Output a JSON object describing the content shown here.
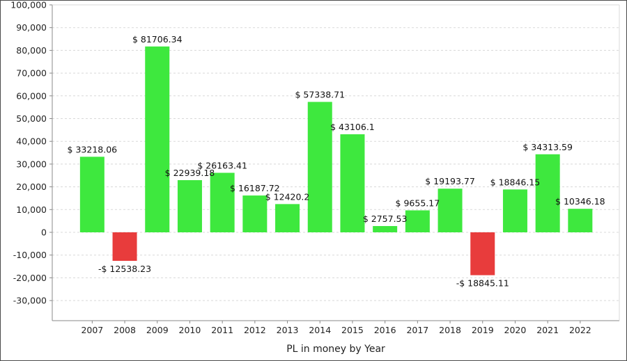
{
  "chart_data": {
    "type": "bar",
    "title": "",
    "xlabel": "PL in money by Year",
    "ylabel": "",
    "ylim": [
      -40000,
      100000
    ],
    "yticks": [
      100000,
      90000,
      80000,
      70000,
      60000,
      50000,
      40000,
      30000,
      20000,
      10000,
      0,
      -10000,
      -20000,
      -30000
    ],
    "ytick_labels": [
      "100,000",
      "90,000",
      "80,000",
      "70,000",
      "60,000",
      "50,000",
      "40,000",
      "30,000",
      "20,000",
      "10,000",
      "0",
      "-10,000",
      "-20,000",
      "-30,000"
    ],
    "grid": true,
    "categories": [
      "2007",
      "2008",
      "2009",
      "2010",
      "2011",
      "2012",
      "2013",
      "2014",
      "2015",
      "2016",
      "2017",
      "2018",
      "2019",
      "2020",
      "2021",
      "2022"
    ],
    "values": [
      33218.06,
      -12538.23,
      81706.34,
      22939.18,
      26163.41,
      16187.72,
      12420.2,
      57338.71,
      43106.1,
      2757.53,
      9655.17,
      19193.77,
      -18845.11,
      18846.15,
      34313.59,
      10346.18
    ],
    "data_labels": [
      "$ 33218.06",
      "-$ 12538.23",
      "$ 81706.34",
      "$ 22939.18",
      "$ 26163.41",
      "$ 16187.72",
      "$ 12420.2",
      "$ 57338.71",
      "$ 43106.1",
      "$ 2757.53",
      "$ 9655.17",
      "$ 19193.77",
      "-$ 18845.11",
      "$ 18846.15",
      "$ 34313.59",
      "$ 10346.18"
    ],
    "colors": {
      "positive": "#3ee83e",
      "negative": "#e83c3c",
      "grid": "#d8d8d8",
      "axis": "#888888"
    }
  }
}
